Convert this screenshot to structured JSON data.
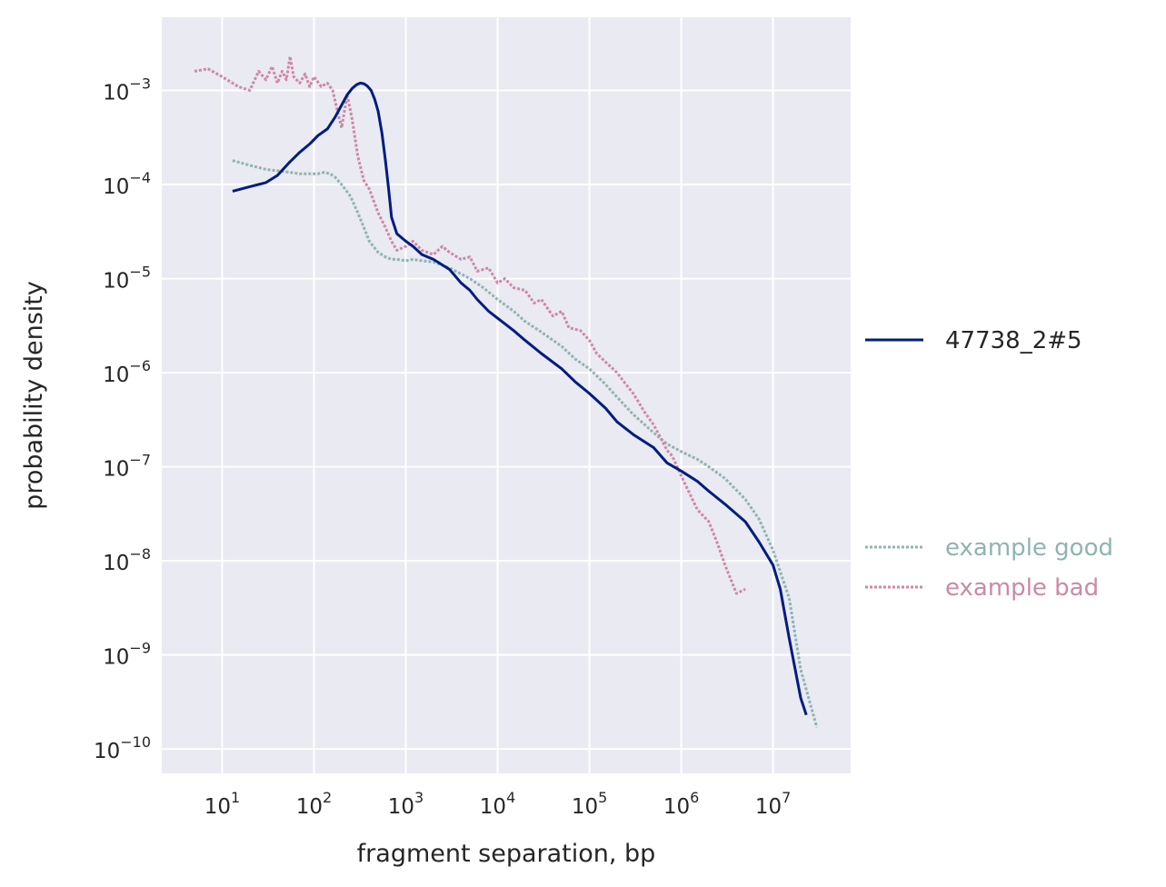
{
  "chart_data": {
    "type": "line",
    "title": "",
    "xlabel": "fragment separation, bp",
    "ylabel": "probability density",
    "xscale": "log",
    "yscale": "log",
    "xlim": [
      2.2,
      70000000
    ],
    "ylim": [
      5.5e-11,
      0.006
    ],
    "grid": true,
    "background": "#eaeaf2",
    "x_ticks": [
      {
        "value": 10,
        "base": "10",
        "exp": "1"
      },
      {
        "value": 100,
        "base": "10",
        "exp": "2"
      },
      {
        "value": 1000,
        "base": "10",
        "exp": "3"
      },
      {
        "value": 10000,
        "base": "10",
        "exp": "4"
      },
      {
        "value": 100000,
        "base": "10",
        "exp": "5"
      },
      {
        "value": 1000000,
        "base": "10",
        "exp": "6"
      },
      {
        "value": 10000000,
        "base": "10",
        "exp": "7"
      }
    ],
    "y_ticks": [
      {
        "value": 0.001,
        "base": "10",
        "exp": "−3"
      },
      {
        "value": 0.0001,
        "base": "10",
        "exp": "−4"
      },
      {
        "value": 1e-05,
        "base": "10",
        "exp": "−5"
      },
      {
        "value": 1e-06,
        "base": "10",
        "exp": "−6"
      },
      {
        "value": 1e-07,
        "base": "10",
        "exp": "−7"
      },
      {
        "value": 1e-08,
        "base": "10",
        "exp": "−8"
      },
      {
        "value": 1e-09,
        "base": "10",
        "exp": "−9"
      },
      {
        "value": 1e-10,
        "base": "10",
        "exp": "−10"
      }
    ],
    "legends": [
      {
        "placement": "right-middle",
        "entries": [
          {
            "name": "47738_2#5",
            "series_index": 0,
            "text_color": "#262626"
          }
        ]
      },
      {
        "placement": "right-lower",
        "entries": [
          {
            "name": "example good",
            "series_index": 1,
            "text_color": "#8fb4b0"
          },
          {
            "name": "example bad",
            "series_index": 2,
            "text_color": "#cc89a5"
          }
        ]
      }
    ],
    "series": [
      {
        "name": "47738_2#5",
        "color": "#001c7f",
        "style": "solid",
        "x": [
          13,
          20,
          30,
          40,
          55,
          70,
          90,
          110,
          140,
          170,
          200,
          230,
          260,
          290,
          320,
          350,
          380,
          420,
          460,
          500,
          550,
          600,
          650,
          700,
          800,
          1000,
          1200,
          1500,
          2000,
          3000,
          4000,
          5000,
          6000,
          8000,
          10000,
          15000,
          20000,
          30000,
          50000,
          70000,
          100000,
          150000,
          200000,
          300000,
          500000,
          700000,
          1000000,
          1500000,
          2000000,
          3000000,
          5000000,
          7000000,
          10000000,
          12000000,
          15000000,
          20000000,
          23000000
        ],
        "y": [
          8.5e-05,
          9.5e-05,
          0.000105,
          0.000125,
          0.000175,
          0.00022,
          0.00027,
          0.00033,
          0.00039,
          0.00052,
          0.0007,
          0.0009,
          0.00105,
          0.00115,
          0.0012,
          0.00118,
          0.00112,
          0.001,
          0.0008,
          0.0006,
          0.00035,
          0.00018,
          9e-05,
          4.5e-05,
          3e-05,
          2.5e-05,
          2.2e-05,
          1.8e-05,
          1.6e-05,
          1.25e-05,
          9e-06,
          7.5e-06,
          6e-06,
          4.5e-06,
          3.8e-06,
          2.8e-06,
          2.2e-06,
          1.6e-06,
          1.1e-06,
          8e-07,
          6e-07,
          4.2e-07,
          3e-07,
          2.2e-07,
          1.6e-07,
          1.1e-07,
          9e-08,
          7e-08,
          5.5e-08,
          4e-08,
          2.6e-08,
          1.6e-08,
          9e-09,
          5e-09,
          1.5e-09,
          3.5e-10,
          2.3e-10
        ]
      },
      {
        "name": "example good",
        "color": "#8fb4b0",
        "style": "dotted",
        "x": [
          13,
          20,
          30,
          40,
          55,
          70,
          90,
          110,
          130,
          150,
          170,
          200,
          250,
          300,
          350,
          400,
          500,
          600,
          700,
          800,
          1000,
          1200,
          1500,
          2000,
          3000,
          5000,
          7000,
          10000,
          15000,
          20000,
          30000,
          50000,
          70000,
          100000,
          150000,
          200000,
          300000,
          500000,
          700000,
          1000000,
          1500000,
          2000000,
          3000000,
          5000000,
          7000000,
          10000000,
          15000000,
          20000000,
          30000000
        ],
        "y": [
          0.00018,
          0.00016,
          0.000145,
          0.00014,
          0.000135,
          0.00013,
          0.00013,
          0.00013,
          0.000135,
          0.00013,
          0.00012,
          0.0001,
          7.5e-05,
          5e-05,
          3.5e-05,
          2.5e-05,
          1.9e-05,
          1.7e-05,
          1.6e-05,
          1.6e-05,
          1.55e-05,
          1.6e-05,
          1.55e-05,
          1.5e-05,
          1.3e-05,
          1e-05,
          8e-06,
          6e-06,
          4.5e-06,
          3.5e-06,
          2.7e-06,
          1.9e-06,
          1.4e-06,
          1.1e-06,
          7.5e-07,
          5.5e-07,
          3.6e-07,
          2.3e-07,
          1.75e-07,
          1.45e-07,
          1.2e-07,
          1e-07,
          7.5e-08,
          4.5e-08,
          2.8e-08,
          1.3e-08,
          4e-09,
          7e-10,
          1.7e-10
        ]
      },
      {
        "name": "example bad",
        "color": "#cc89a5",
        "style": "dotted",
        "x": [
          5,
          7,
          10,
          15,
          20,
          25,
          30,
          35,
          40,
          45,
          50,
          55,
          60,
          70,
          80,
          90,
          100,
          120,
          140,
          160,
          180,
          200,
          230,
          260,
          300,
          350,
          400,
          500,
          600,
          700,
          800,
          1000,
          1200,
          1500,
          2000,
          2500,
          3000,
          4000,
          5000,
          6000,
          8000,
          10000,
          12000,
          15000,
          20000,
          25000,
          30000,
          40000,
          50000,
          60000,
          80000,
          100000,
          120000,
          150000,
          200000,
          250000,
          300000,
          400000,
          500000,
          600000,
          700000,
          800000,
          1000000,
          1200000,
          1500000,
          2000000,
          2500000,
          3000000,
          4000000,
          5000000
        ],
        "y": [
          0.0016,
          0.0017,
          0.0014,
          0.0011,
          0.001,
          0.0016,
          0.0013,
          0.0018,
          0.0012,
          0.0016,
          0.0013,
          0.0023,
          0.0014,
          0.0012,
          0.0015,
          0.0011,
          0.0014,
          0.0011,
          0.0012,
          0.001,
          0.0006,
          0.0004,
          0.0009,
          0.0005,
          0.0002,
          0.00011,
          9e-05,
          5e-05,
          3.5e-05,
          2.5e-05,
          2e-05,
          2.2e-05,
          2.5e-05,
          2e-05,
          1.8e-05,
          2.2e-05,
          1.9e-05,
          1.6e-05,
          1.7e-05,
          1.2e-05,
          1.3e-05,
          9e-06,
          1e-05,
          8e-06,
          7.5e-06,
          5.5e-06,
          6e-06,
          4e-06,
          4.5e-06,
          3e-06,
          2.8e-06,
          2.2e-06,
          1.6e-06,
          1.3e-06,
          1e-06,
          7.5e-07,
          6e-07,
          3.8e-07,
          2.8e-07,
          2e-07,
          1.5e-07,
          1.3e-07,
          8e-08,
          5.5e-08,
          3.5e-08,
          2.6e-08,
          1.5e-08,
          9e-09,
          4.5e-09,
          5e-09
        ]
      }
    ]
  }
}
